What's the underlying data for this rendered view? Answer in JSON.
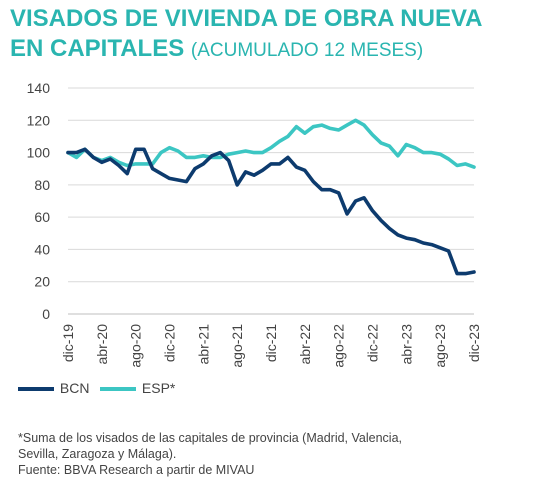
{
  "title": {
    "main_line1": "VISADOS DE VIVIENDA DE OBRA NUEVA",
    "main_line2": "EN CAPITALES",
    "sub": "(ACUMULADO 12 MESES)"
  },
  "colors": {
    "title": "#2ab5b0",
    "BCN": "#0d3b6e",
    "ESP": "#3cc6c3",
    "grid": "#d9d9d9",
    "text": "#444444"
  },
  "chart_data": {
    "type": "line",
    "ylim": [
      0,
      140
    ],
    "yticks": [
      0,
      20,
      40,
      60,
      80,
      100,
      120,
      140
    ],
    "x": [
      "dic-19",
      "ene-20",
      "feb-20",
      "mar-20",
      "abr-20",
      "may-20",
      "jun-20",
      "jul-20",
      "ago-20",
      "sep-20",
      "oct-20",
      "nov-20",
      "dic-20",
      "ene-21",
      "feb-21",
      "mar-21",
      "abr-21",
      "may-21",
      "jun-21",
      "jul-21",
      "ago-21",
      "sep-21",
      "oct-21",
      "nov-21",
      "dic-21",
      "ene-22",
      "feb-22",
      "mar-22",
      "abr-22",
      "may-22",
      "jun-22",
      "jul-22",
      "ago-22",
      "sep-22",
      "oct-22",
      "nov-22",
      "dic-22",
      "ene-23",
      "feb-23",
      "mar-23",
      "abr-23",
      "may-23",
      "jun-23",
      "jul-23",
      "ago-23",
      "sep-23",
      "oct-23",
      "nov-23",
      "dic-23"
    ],
    "xticklabels": [
      "dic-19",
      "abr-20",
      "ago-20",
      "dic-20",
      "abr-21",
      "ago-21",
      "dic-21",
      "abr-22",
      "ago-22",
      "dic-22",
      "abr-23",
      "ago-23",
      "dic-23"
    ],
    "grid": true,
    "legend_position": "bottom-left",
    "series": [
      {
        "name": "BCN",
        "values": [
          100,
          100,
          102,
          97,
          94,
          96,
          92,
          87,
          102,
          102,
          90,
          87,
          84,
          83,
          82,
          90,
          93,
          98,
          100,
          95,
          80,
          88,
          86,
          89,
          93,
          93,
          97,
          91,
          89,
          82,
          77,
          77,
          75,
          62,
          70,
          72,
          64,
          58,
          53,
          49,
          47,
          46,
          44,
          43,
          41,
          39,
          25,
          25,
          26
        ]
      },
      {
        "name": "ESP",
        "values": [
          100,
          97,
          102,
          97,
          95,
          97,
          94,
          92,
          93,
          93,
          93,
          100,
          103,
          101,
          97,
          97,
          98,
          97,
          97,
          99,
          100,
          101,
          100,
          100,
          103,
          107,
          110,
          116,
          112,
          116,
          117,
          115,
          114,
          117,
          120,
          117,
          111,
          106,
          104,
          98,
          105,
          103,
          100,
          100,
          99,
          96,
          92,
          93,
          91
        ]
      }
    ]
  },
  "legend": {
    "items": [
      {
        "label": "BCN"
      },
      {
        "label": "ESP*"
      }
    ]
  },
  "footnote": {
    "line1": "*Suma de los visados de las capitales de provincia (Madrid, Valencia,",
    "line2": "Sevilla, Zaragoza y Málaga).",
    "line3": "Fuente: BBVA Research a partir de MIVAU"
  }
}
